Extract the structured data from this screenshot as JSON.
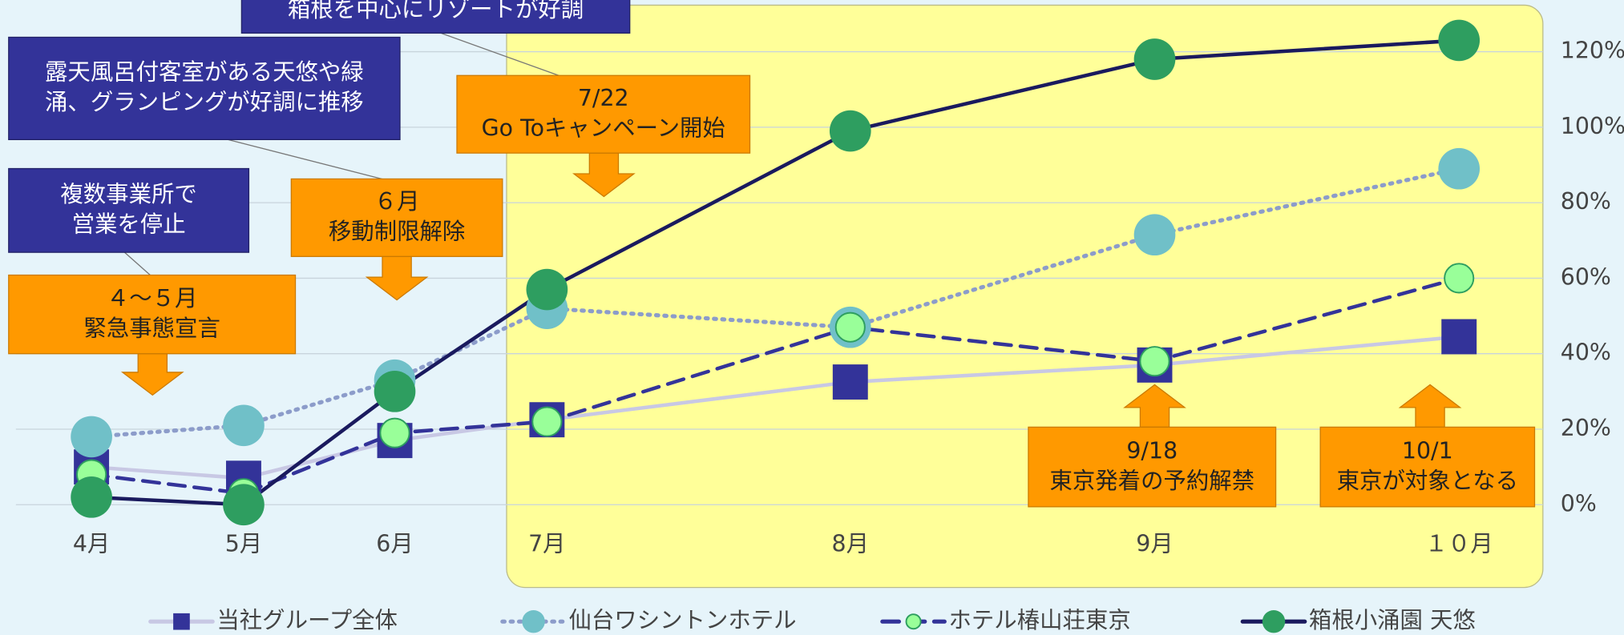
{
  "chart_data": {
    "type": "line",
    "categories": [
      "4月",
      "5月",
      "6月",
      "7月",
      "8月",
      "9月",
      "１０月"
    ],
    "ylim": [
      0,
      120
    ],
    "yticks": [
      {
        "value": 0,
        "label": "0%"
      },
      {
        "value": 20,
        "label": "20%"
      },
      {
        "value": 40,
        "label": "40%"
      },
      {
        "value": 60,
        "label": "60%"
      },
      {
        "value": 80,
        "label": "80%"
      },
      {
        "value": 100,
        "label": "100%"
      },
      {
        "value": 120,
        "label": "120%"
      }
    ],
    "grid": true,
    "series": [
      {
        "name": "当社グループ全体",
        "color": "#333399",
        "line_color": "#c8c8e4",
        "marker": "square",
        "line_style": "solid",
        "values": [
          10,
          7,
          17,
          22.5,
          32.5,
          37,
          44.5
        ]
      },
      {
        "name": "仙台ワシントンホテル",
        "color": "#70c0c8",
        "line_color": "#8c9cca",
        "marker": "circle",
        "line_style": "dotted",
        "values": [
          18,
          21,
          33,
          52,
          47,
          71.5,
          89
        ]
      },
      {
        "name": "ホテル椿山荘東京",
        "color": "#99ff99",
        "line_color": "#333399",
        "marker": "small-circle",
        "line_style": "dashed",
        "values": [
          8,
          3,
          19,
          22,
          47,
          38,
          60
        ]
      },
      {
        "name": "箱根小涌園 天悠",
        "color": "#2e9e60",
        "line_color": "#1a1a5e",
        "marker": "circle",
        "line_style": "solid",
        "values": [
          2,
          0,
          30,
          57,
          99,
          118,
          123
        ]
      }
    ],
    "annotations": [
      {
        "style": "note",
        "lines": [
          "箱根を中心にリゾートが好調"
        ]
      },
      {
        "style": "note",
        "lines": [
          "露天風呂付客室がある天悠や緑",
          "涌、グランピングが好調に推移"
        ]
      },
      {
        "style": "note",
        "lines": [
          "複数事業所で",
          "営業を停止"
        ]
      },
      {
        "style": "event",
        "lines": [
          "４～５月",
          "緊急事態宣言"
        ]
      },
      {
        "style": "event",
        "lines": [
          "６月",
          "移動制限解除"
        ]
      },
      {
        "style": "event",
        "lines": [
          "7/22",
          "Go Toキャンペーン開始"
        ]
      },
      {
        "style": "event",
        "lines": [
          "9/18",
          "東京発着の予約解禁"
        ]
      },
      {
        "style": "event",
        "lines": [
          "10/1",
          "東京が対象となる"
        ]
      }
    ]
  }
}
